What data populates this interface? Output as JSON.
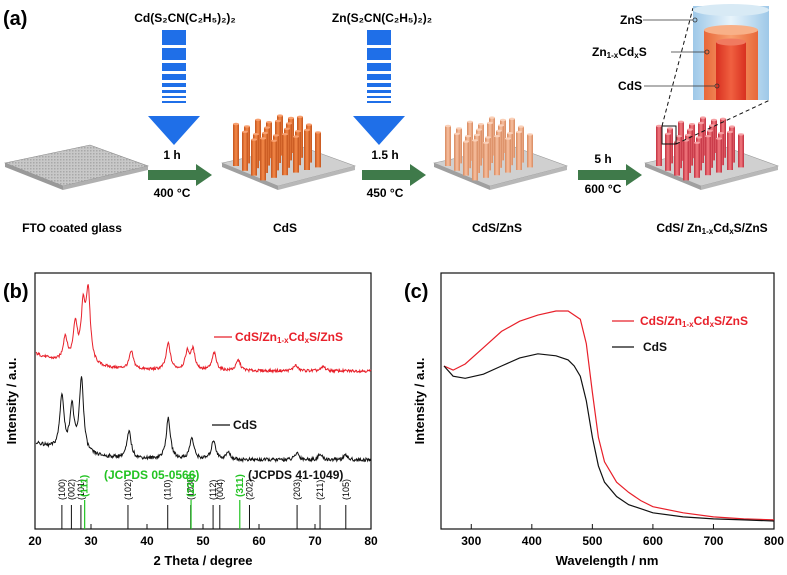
{
  "panel_a": {
    "label": "(a)",
    "stages": {
      "glass": "FTO coated glass",
      "cds": "CdS",
      "cds_zns": "CdS/ZnS",
      "final_pre": "CdS/ Zn",
      "final_sub1": "1-x",
      "final_mid": "Cd",
      "final_sub2": "x",
      "final_post": "S/ZnS"
    },
    "precursors": {
      "cd": "Cd(S₂CN(C₂H₅)₂)₂",
      "zn": "Zn(S₂CN(C₂H₅)₂)₂"
    },
    "steps": [
      {
        "time": "1 h",
        "temp": "400 °C"
      },
      {
        "time": "1.5 h",
        "temp": "450 °C"
      },
      {
        "time": "5 h",
        "temp": "600 °C"
      }
    ],
    "inset": {
      "zns": "ZnS",
      "alloy_pre": "Zn",
      "alloy_sub1": "1-x",
      "alloy_mid": "Cd",
      "alloy_sub2": "x",
      "alloy_post": "S",
      "cds": "CdS"
    },
    "colors": {
      "arrow_blue": "#1f6fe8",
      "green_arrow": "#3f7a4a",
      "rod_cds": "#f07a3a",
      "rod_zns": "#f4a070",
      "rod_final": "#e8505a"
    }
  },
  "chart_data": [
    {
      "type": "line",
      "panel_label": "(b)",
      "xlabel": "2 Theta / degree",
      "ylabel": "Intensity / a.u.",
      "xlim": [
        20,
        80
      ],
      "xticks": [
        20,
        30,
        40,
        50,
        60,
        70,
        80
      ],
      "series": [
        {
          "name": "CdS/Zn1-xCdxS/ZnS",
          "color": "#e8202a",
          "legend": {
            "pre": "CdS/Zn",
            "sub1": "1-x",
            "mid": "Cd",
            "sub2": "x",
            "post": "S/ZnS"
          },
          "peaks": [
            [
              25.4,
              0.35
            ],
            [
              27.2,
              0.55
            ],
            [
              28.6,
              0.75
            ],
            [
              29.5,
              1.0
            ],
            [
              37.2,
              0.25
            ],
            [
              43.8,
              0.38
            ],
            [
              47.2,
              0.25
            ],
            [
              48.2,
              0.28
            ],
            [
              52.0,
              0.25
            ],
            [
              56.3,
              0.15
            ],
            [
              66.5,
              0.08
            ],
            [
              71.5,
              0.06
            ]
          ]
        },
        {
          "name": "CdS",
          "color": "#111111",
          "legend": {
            "pre": "CdS"
          },
          "peaks": [
            [
              24.8,
              0.62
            ],
            [
              26.6,
              0.5
            ],
            [
              28.3,
              0.85
            ],
            [
              36.8,
              0.3
            ],
            [
              43.8,
              0.46
            ],
            [
              48.0,
              0.24
            ],
            [
              51.9,
              0.22
            ],
            [
              54.5,
              0.08
            ],
            [
              66.8,
              0.08
            ],
            [
              70.9,
              0.06
            ],
            [
              75.5,
              0.05
            ]
          ]
        }
      ],
      "reference_black": {
        "label": "(JCPDS 41-1049)",
        "lines": [
          {
            "x": 24.8,
            "label": "(100)"
          },
          {
            "x": 26.5,
            "label": "(002)"
          },
          {
            "x": 28.2,
            "label": "(101)"
          },
          {
            "x": 36.6,
            "label": "(102)"
          },
          {
            "x": 43.7,
            "label": "(110)"
          },
          {
            "x": 47.8,
            "label": "(103)"
          },
          {
            "x": 51.8,
            "label": "(112)"
          },
          {
            "x": 53.0,
            "label": "(004)"
          },
          {
            "x": 58.3,
            "label": "(202)"
          },
          {
            "x": 66.8,
            "label": "(203)"
          },
          {
            "x": 70.9,
            "label": "(211)"
          },
          {
            "x": 75.5,
            "label": "(105)"
          }
        ]
      },
      "reference_green": {
        "label": "(JCPDS 05-0566)",
        "color": "#22c322",
        "lines": [
          {
            "x": 28.6,
            "label": "(111)"
          },
          {
            "x": 47.6,
            "label": "(220)"
          },
          {
            "x": 56.3,
            "label": "(311)"
          }
        ]
      }
    },
    {
      "type": "line",
      "panel_label": "(c)",
      "xlabel": "Wavelength / nm",
      "ylabel": "Intensity / a.u.",
      "xlim": [
        250,
        800
      ],
      "ylim": [
        0,
        1
      ],
      "xticks": [
        300,
        400,
        500,
        600,
        700,
        800
      ],
      "series": [
        {
          "name": "CdS/Zn1-xCdxS/ZnS",
          "color": "#e8202a",
          "legend": {
            "pre": "CdS/Zn",
            "sub1": "1-x",
            "mid": "Cd",
            "sub2": "x",
            "post": "S/ZnS"
          },
          "x": [
            255,
            270,
            290,
            320,
            350,
            380,
            410,
            440,
            460,
            480,
            490,
            500,
            510,
            520,
            540,
            560,
            580,
            600,
            650,
            700,
            750,
            800
          ],
          "y": [
            0.77,
            0.75,
            0.78,
            0.86,
            0.94,
            0.99,
            1.02,
            1.04,
            1.04,
            1.0,
            0.88,
            0.64,
            0.42,
            0.3,
            0.2,
            0.15,
            0.11,
            0.08,
            0.05,
            0.03,
            0.02,
            0.015
          ]
        },
        {
          "name": "CdS",
          "color": "#111111",
          "legend": {
            "pre": "CdS"
          },
          "x": [
            255,
            270,
            290,
            320,
            350,
            380,
            410,
            440,
            460,
            470,
            480,
            490,
            500,
            510,
            520,
            540,
            560,
            580,
            600,
            650,
            700,
            750,
            800
          ],
          "y": [
            0.77,
            0.72,
            0.71,
            0.73,
            0.77,
            0.81,
            0.83,
            0.82,
            0.8,
            0.77,
            0.72,
            0.6,
            0.42,
            0.28,
            0.2,
            0.13,
            0.09,
            0.07,
            0.05,
            0.03,
            0.02,
            0.015,
            0.01
          ]
        }
      ]
    }
  ]
}
